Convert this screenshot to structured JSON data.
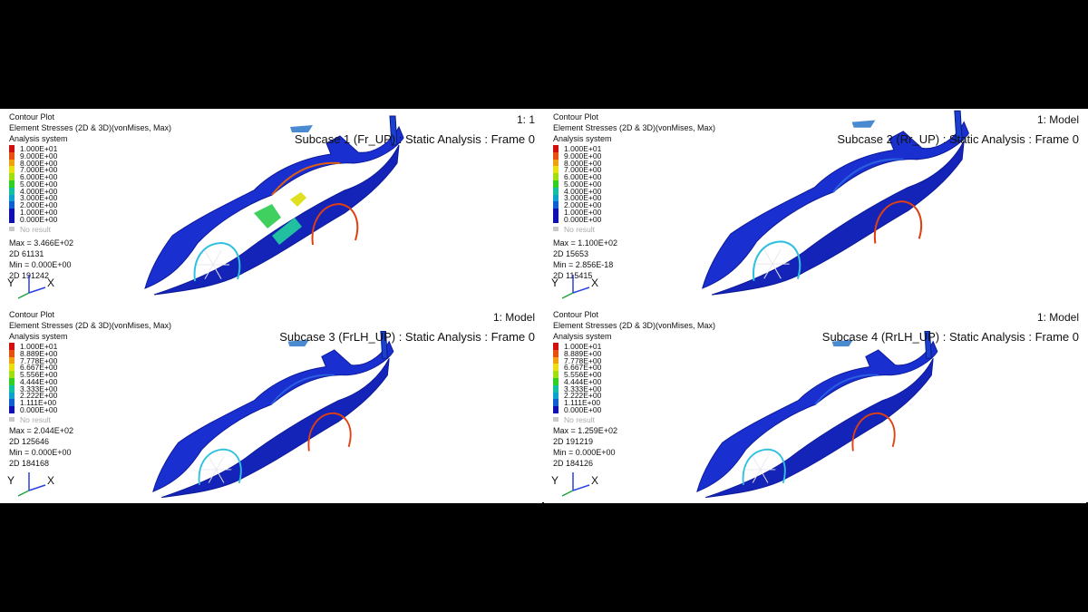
{
  "panels": [
    {
      "title_right": "1: 1",
      "subtitle": "Subcase 1 (Fr_UP) : Static Analysis : Frame 0",
      "header": [
        "Contour Plot",
        "Element Stresses (2D & 3D)(vonMises, Max)",
        "Analysis system"
      ],
      "legend": [
        "1.000E+01",
        "9.000E+00",
        "8.000E+00",
        "7.000E+00",
        "6.000E+00",
        "5.000E+00",
        "4.000E+00",
        "3.000E+00",
        "2.000E+00",
        "1.000E+00",
        "0.000E+00"
      ],
      "no_result": "No result",
      "stats": [
        "Max = 3.466E+02",
        "2D 61131",
        "Min = 0.000E+00",
        "2D 191242"
      ],
      "axes": {
        "y": "Y",
        "x": "X"
      }
    },
    {
      "title_right": "1: Model",
      "subtitle": "Subcase 2 (Rr_UP) : Static Analysis : Frame 0",
      "header": [
        "Contour Plot",
        "Element Stresses (2D & 3D)(vonMises, Max)",
        "Analysis system"
      ],
      "legend": [
        "1.000E+01",
        "9.000E+00",
        "8.000E+00",
        "7.000E+00",
        "6.000E+00",
        "5.000E+00",
        "4.000E+00",
        "3.000E+00",
        "2.000E+00",
        "1.000E+00",
        "0.000E+00"
      ],
      "no_result": "No result",
      "stats": [
        "Max = 1.100E+02",
        "2D 15653",
        "Min = 2.856E-18",
        "2D 115415"
      ],
      "axes": {
        "y": "Y",
        "x": "X"
      }
    },
    {
      "title_right": "1: Model",
      "subtitle": "Subcase 3 (FrLH_UP) : Static Analysis : Frame 0",
      "header": [
        "Contour Plot",
        "Element Stresses (2D & 3D)(vonMises, Max)",
        "Analysis system"
      ],
      "legend": [
        "1.000E+01",
        "8.889E+00",
        "7.778E+00",
        "6.667E+00",
        "5.556E+00",
        "4.444E+00",
        "3.333E+00",
        "2.222E+00",
        "1.111E+00",
        "0.000E+00"
      ],
      "no_result": "No result",
      "stats": [
        "Max = 2.044E+02",
        "2D 125646",
        "Min = 0.000E+00",
        "2D 184168"
      ],
      "axes": {
        "y": "Y",
        "x": "X"
      }
    },
    {
      "title_right": "1: Model",
      "subtitle": "Subcase 4 (RrLH_UP) : Static Analysis : Frame 0",
      "header": [
        "Contour Plot",
        "Element Stresses (2D & 3D)(vonMises, Max)",
        "Analysis system"
      ],
      "legend": [
        "1.000E+01",
        "8.889E+00",
        "7.778E+00",
        "6.667E+00",
        "5.556E+00",
        "4.444E+00",
        "3.333E+00",
        "2.222E+00",
        "1.111E+00",
        "0.000E+00"
      ],
      "no_result": "No result",
      "stats": [
        "Max = 1.259E+02",
        "2D 191219",
        "Min = 0.000E+00",
        "2D 184126"
      ],
      "axes": {
        "y": "Y",
        "x": "X"
      }
    }
  ],
  "colors": {
    "legend_10": [
      "#d01010",
      "#e85010",
      "#f0a010",
      "#e8e010",
      "#a0e010",
      "#30d020",
      "#10c0a0",
      "#10a0d0",
      "#1060d0",
      "#1010b0"
    ],
    "legend_11": [
      "#d01010",
      "#e85010",
      "#f0a010",
      "#e8e010",
      "#a0e010",
      "#30d020",
      "#10c0a0",
      "#10a0d0",
      "#1060d0",
      "#1010b0",
      "#1010b0"
    ],
    "body_blue": "#1a2fd0"
  }
}
